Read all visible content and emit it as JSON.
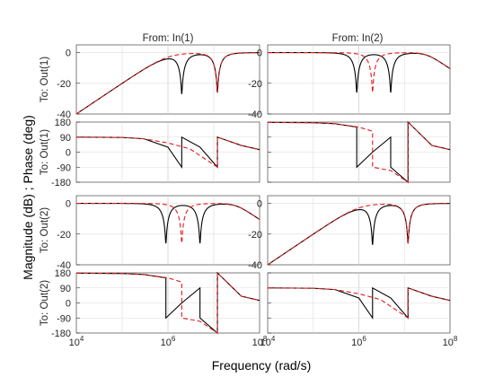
{
  "chart_data": {
    "type": "line",
    "plot_kind": "bode",
    "xlabel": "Frequency  (rad/s)",
    "ylabel": "Magnitude (dB) ; Phase (deg)",
    "x_scale": "log",
    "xlim": [
      10000,
      100000000
    ],
    "x_ticks": [
      10000,
      1000000,
      100000000
    ],
    "x_ticklabels": [
      "10^4",
      "10^6",
      "10^8"
    ],
    "grid": true,
    "columns": [
      "From: In(1)",
      "From: In(2)"
    ],
    "rows": [
      "To: Out(1)",
      "To: Out(2)"
    ],
    "magnitude": {
      "ylim": [
        -40,
        5
      ],
      "yticks": [
        0,
        -20,
        -40
      ]
    },
    "phase": {
      "ylim": [
        -180,
        180
      ],
      "yticks": [
        180,
        90,
        0,
        -90,
        -180
      ]
    },
    "series_colors": [
      "#000000",
      "#e41a1c"
    ],
    "series_styles": [
      "solid",
      "dashed"
    ],
    "panels": [
      {
        "row": 1,
        "col": 1,
        "notches": [
          [
            2000000,
            12000000
          ],
          [
            12000000
          ]
        ],
        "phase_series": [
          {
            "x": [
              10000,
              100000,
              300000,
              1000000,
              2000000,
              2000000,
              5000000,
              12000000,
              12000000,
              40000000,
              100000000
            ],
            "y": [
              90,
              88,
              80,
              30,
              -90,
              90,
              30,
              -90,
              90,
              40,
              15
            ]
          },
          {
            "x": [
              10000,
              100000,
              300000,
              1000000,
              3000000,
              12000000,
              12000000,
              40000000,
              100000000
            ],
            "y": [
              90,
              88,
              80,
              55,
              20,
              -90,
              90,
              40,
              15
            ]
          }
        ]
      },
      {
        "row": 1,
        "col": 2,
        "notches": [
          [
            900000,
            5000000
          ],
          [
            2000000
          ]
        ],
        "phase_series": [
          {
            "x": [
              10000,
              100000,
              300000,
              900000,
              900000,
              2000000,
              5000000,
              5000000,
              12000000,
              12000000,
              40000000,
              100000000
            ],
            "y": [
              178,
              176,
              170,
              150,
              -90,
              0,
              90,
              -90,
              -180,
              180,
              40,
              15
            ]
          },
          {
            "x": [
              10000,
              100000,
              300000,
              1000000,
              2000000,
              2000000,
              5000000,
              12000000,
              12000000,
              40000000,
              100000000
            ],
            "y": [
              178,
              176,
              170,
              150,
              125,
              -90,
              -110,
              -180,
              180,
              40,
              15
            ]
          }
        ]
      },
      {
        "row": 2,
        "col": 1,
        "notches": [
          [
            900000,
            5000000
          ],
          [
            2000000
          ]
        ],
        "phase_series": [
          {
            "x": [
              10000,
              100000,
              300000,
              900000,
              900000,
              2000000,
              5000000,
              5000000,
              12000000,
              12000000,
              40000000,
              100000000
            ],
            "y": [
              178,
              176,
              170,
              150,
              -90,
              0,
              90,
              -90,
              -180,
              180,
              40,
              15
            ]
          },
          {
            "x": [
              10000,
              100000,
              300000,
              1000000,
              2000000,
              2000000,
              5000000,
              12000000,
              12000000,
              40000000,
              100000000
            ],
            "y": [
              178,
              176,
              170,
              150,
              125,
              -90,
              -110,
              -180,
              180,
              40,
              15
            ]
          }
        ]
      },
      {
        "row": 2,
        "col": 2,
        "notches": [
          [
            2000000,
            12000000
          ],
          [
            12000000
          ]
        ],
        "phase_series": [
          {
            "x": [
              10000,
              100000,
              300000,
              1000000,
              2000000,
              2000000,
              5000000,
              12000000,
              12000000,
              40000000,
              100000000
            ],
            "y": [
              90,
              88,
              80,
              30,
              -90,
              90,
              30,
              -90,
              90,
              40,
              15
            ]
          },
          {
            "x": [
              10000,
              100000,
              300000,
              1000000,
              3000000,
              12000000,
              12000000,
              40000000,
              100000000
            ],
            "y": [
              90,
              88,
              80,
              55,
              20,
              -90,
              90,
              40,
              15
            ]
          }
        ]
      }
    ]
  }
}
